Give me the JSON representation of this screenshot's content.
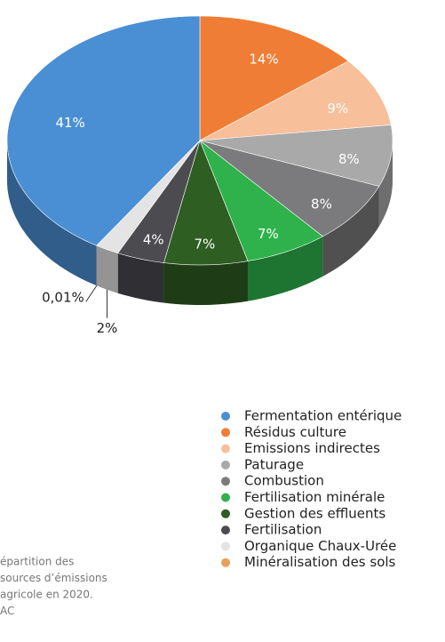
{
  "chart_data": {
    "type": "pie",
    "categories": [
      "Fermentation entérique",
      "Résidus culture",
      "Emissions indirectes",
      "Paturage",
      " Combustion",
      "Fertilisation minérale",
      "Gestion des effluents",
      "Fertilisation",
      "Organique Chaux-Urée",
      "Minéralisation des sols"
    ],
    "values": [
      41,
      14,
      9,
      8,
      8,
      7,
      7,
      4,
      2,
      0.01
    ],
    "value_labels": [
      "41%",
      "14%",
      "9%",
      "8%",
      "8%",
      "7%",
      "7%",
      "4%",
      "2%",
      "0,01%"
    ],
    "colors": [
      "#4a8fd4",
      "#f07d35",
      "#f7bf9a",
      "#a9a9aa",
      "#7b7b7d",
      "#2fb24c",
      "#2e5e22",
      "#4b4b50",
      "#e4e4e4",
      "#e5a25a"
    ],
    "caption": [
      "épartition des",
      "sources d’émissions",
      "agricole en 2020.",
      "AC"
    ]
  }
}
